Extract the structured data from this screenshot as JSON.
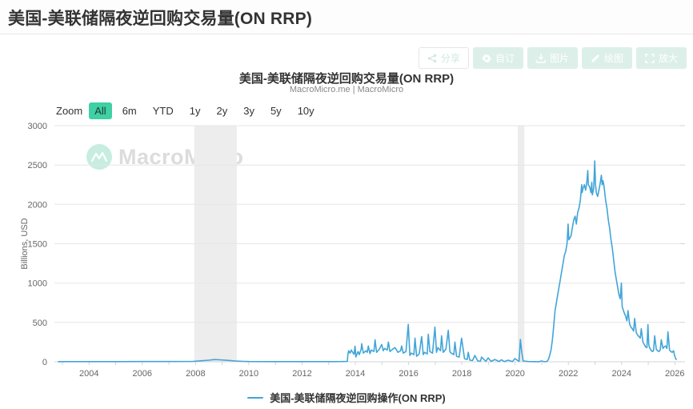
{
  "page": {
    "title": "美国-美联储隔夜逆回购交易量(ON RRP)"
  },
  "toolbar": {
    "buttons": [
      {
        "icon": "share-icon",
        "label": "分享",
        "style": "light"
      },
      {
        "icon": "gear-icon",
        "label": "自订",
        "style": "teal"
      },
      {
        "icon": "image-download-icon",
        "label": "图片",
        "style": "teal"
      },
      {
        "icon": "pencil-icon",
        "label": "绘图",
        "style": "teal"
      },
      {
        "icon": "expand-icon",
        "label": "放大",
        "style": "teal"
      }
    ]
  },
  "chart_header": {
    "title": "美国-美联储隔夜逆回购交易量(ON RRP)",
    "subtitle": "MacroMicro.me | MacroMicro"
  },
  "zoom_controls": {
    "label": "Zoom",
    "selected": "All",
    "options": [
      "All",
      "6m",
      "YTD",
      "1y",
      "2y",
      "3y",
      "5y",
      "10y"
    ]
  },
  "watermark": {
    "text": "MacroMicro"
  },
  "colors": {
    "line": "#41a5d8",
    "accent": "#3fd0a4",
    "band": "#ededed",
    "grid": "#e6e6e6",
    "axis": "#d4d4d8"
  },
  "legend": {
    "items": [
      {
        "label": "美国-美联储隔夜逆回购操作(ON RRP)",
        "color": "#41a5d8"
      }
    ]
  },
  "chart_data": {
    "type": "line",
    "title": "美国-美联储隔夜逆回购交易量(ON RRP)",
    "subtitle": "MacroMicro.me | MacroMicro",
    "xlabel": "",
    "ylabel": "Billions, USD",
    "ylim": [
      0,
      3000
    ],
    "yticks": [
      0,
      500,
      1000,
      1500,
      2000,
      2500,
      3000
    ],
    "xlim": [
      2002.7,
      2026.2
    ],
    "xticks": [
      2004,
      2006,
      2008,
      2010,
      2012,
      2014,
      2016,
      2018,
      2020,
      2022,
      2024,
      2026
    ],
    "grid": true,
    "legend_position": "bottom",
    "recession_bands": [
      [
        2007.95,
        2009.55
      ],
      [
        2020.1,
        2020.35
      ]
    ],
    "series": [
      {
        "name": "美国-美联储隔夜逆回购操作(ON RRP)",
        "color": "#41a5d8",
        "points": [
          [
            2002.85,
            2
          ],
          [
            2004,
            2
          ],
          [
            2005,
            2
          ],
          [
            2006,
            3
          ],
          [
            2007,
            3
          ],
          [
            2007.9,
            5
          ],
          [
            2008.2,
            12
          ],
          [
            2008.5,
            20
          ],
          [
            2008.7,
            28
          ],
          [
            2008.9,
            25
          ],
          [
            2009.2,
            18
          ],
          [
            2009.5,
            10
          ],
          [
            2009.8,
            5
          ],
          [
            2010,
            3
          ],
          [
            2011,
            2
          ],
          [
            2012,
            2
          ],
          [
            2013,
            2
          ],
          [
            2013.5,
            3
          ],
          [
            2013.7,
            5
          ],
          [
            2013.72,
            90
          ],
          [
            2013.75,
            140
          ],
          [
            2013.8,
            110
          ],
          [
            2013.85,
            150
          ],
          [
            2013.9,
            120
          ],
          [
            2013.95,
            95
          ],
          [
            2013.99,
            198
          ],
          [
            2014.02,
            60
          ],
          [
            2014.1,
            130
          ],
          [
            2014.15,
            90
          ],
          [
            2014.22,
            160
          ],
          [
            2014.24,
            230
          ],
          [
            2014.3,
            110
          ],
          [
            2014.4,
            140
          ],
          [
            2014.45,
            120
          ],
          [
            2014.49,
            200
          ],
          [
            2014.55,
            105
          ],
          [
            2014.6,
            150
          ],
          [
            2014.7,
            130
          ],
          [
            2014.74,
            280
          ],
          [
            2014.8,
            120
          ],
          [
            2014.9,
            160
          ],
          [
            2014.99,
            220
          ],
          [
            2015.05,
            140
          ],
          [
            2015.1,
            170
          ],
          [
            2015.2,
            150
          ],
          [
            2015.24,
            250
          ],
          [
            2015.3,
            130
          ],
          [
            2015.4,
            160
          ],
          [
            2015.49,
            180
          ],
          [
            2015.6,
            120
          ],
          [
            2015.7,
            140
          ],
          [
            2015.74,
            200
          ],
          [
            2015.8,
            110
          ],
          [
            2015.9,
            130
          ],
          [
            2015.99,
            475
          ],
          [
            2016.05,
            80
          ],
          [
            2016.1,
            110
          ],
          [
            2016.2,
            90
          ],
          [
            2016.24,
            300
          ],
          [
            2016.3,
            70
          ],
          [
            2016.4,
            100
          ],
          [
            2016.49,
            320
          ],
          [
            2016.55,
            90
          ],
          [
            2016.6,
            120
          ],
          [
            2016.7,
            100
          ],
          [
            2016.74,
            350
          ],
          [
            2016.8,
            130
          ],
          [
            2016.9,
            110
          ],
          [
            2016.99,
            440
          ],
          [
            2017.05,
            120
          ],
          [
            2017.1,
            180
          ],
          [
            2017.2,
            140
          ],
          [
            2017.24,
            330
          ],
          [
            2017.3,
            120
          ],
          [
            2017.4,
            160
          ],
          [
            2017.49,
            400
          ],
          [
            2017.55,
            130
          ],
          [
            2017.6,
            110
          ],
          [
            2017.7,
            90
          ],
          [
            2017.74,
            250
          ],
          [
            2017.8,
            70
          ],
          [
            2017.9,
            60
          ],
          [
            2017.99,
            300
          ],
          [
            2018.1,
            40
          ],
          [
            2018.2,
            30
          ],
          [
            2018.24,
            120
          ],
          [
            2018.3,
            20
          ],
          [
            2018.4,
            15
          ],
          [
            2018.49,
            80
          ],
          [
            2018.6,
            10
          ],
          [
            2018.7,
            8
          ],
          [
            2018.74,
            60
          ],
          [
            2018.9,
            5
          ],
          [
            2018.99,
            50
          ],
          [
            2019.1,
            5
          ],
          [
            2019.24,
            30
          ],
          [
            2019.4,
            3
          ],
          [
            2019.49,
            25
          ],
          [
            2019.6,
            2
          ],
          [
            2019.74,
            20
          ],
          [
            2019.9,
            2
          ],
          [
            2019.99,
            40
          ],
          [
            2020.15,
            5
          ],
          [
            2020.2,
            285
          ],
          [
            2020.25,
            120
          ],
          [
            2020.3,
            10
          ],
          [
            2020.5,
            3
          ],
          [
            2020.7,
            2
          ],
          [
            2020.9,
            1
          ],
          [
            2020.99,
            10
          ],
          [
            2021.1,
            1
          ],
          [
            2021.2,
            5
          ],
          [
            2021.25,
            30
          ],
          [
            2021.3,
            80
          ],
          [
            2021.35,
            150
          ],
          [
            2021.4,
            280
          ],
          [
            2021.45,
            450
          ],
          [
            2021.5,
            650
          ],
          [
            2021.55,
            750
          ],
          [
            2021.6,
            850
          ],
          [
            2021.65,
            950
          ],
          [
            2021.7,
            1050
          ],
          [
            2021.75,
            1150
          ],
          [
            2021.8,
            1250
          ],
          [
            2021.85,
            1350
          ],
          [
            2021.9,
            1400
          ],
          [
            2021.95,
            1500
          ],
          [
            2021.99,
            1750
          ],
          [
            2022.02,
            1550
          ],
          [
            2022.1,
            1600
          ],
          [
            2022.15,
            1700
          ],
          [
            2022.2,
            1800
          ],
          [
            2022.25,
            1850
          ],
          [
            2022.3,
            1750
          ],
          [
            2022.35,
            1900
          ],
          [
            2022.4,
            1950
          ],
          [
            2022.45,
            2050
          ],
          [
            2022.5,
            2250
          ],
          [
            2022.52,
            2150
          ],
          [
            2022.55,
            2200
          ],
          [
            2022.6,
            2250
          ],
          [
            2022.65,
            2180
          ],
          [
            2022.7,
            2300
          ],
          [
            2022.73,
            2430
          ],
          [
            2022.75,
            2250
          ],
          [
            2022.8,
            2220
          ],
          [
            2022.85,
            2150
          ],
          [
            2022.88,
            2280
          ],
          [
            2022.9,
            2120
          ],
          [
            2022.95,
            2200
          ],
          [
            2022.99,
            2553
          ],
          [
            2023.02,
            2250
          ],
          [
            2023.05,
            2150
          ],
          [
            2023.1,
            2100
          ],
          [
            2023.15,
            2180
          ],
          [
            2023.2,
            2280
          ],
          [
            2023.24,
            2370
          ],
          [
            2023.27,
            2250
          ],
          [
            2023.3,
            2300
          ],
          [
            2023.33,
            2250
          ],
          [
            2023.36,
            2170
          ],
          [
            2023.4,
            2050
          ],
          [
            2023.45,
            1950
          ],
          [
            2023.5,
            1800
          ],
          [
            2023.55,
            1700
          ],
          [
            2023.6,
            1550
          ],
          [
            2023.65,
            1450
          ],
          [
            2023.7,
            1300
          ],
          [
            2023.75,
            1150
          ],
          [
            2023.8,
            1050
          ],
          [
            2023.85,
            950
          ],
          [
            2023.9,
            850
          ],
          [
            2023.95,
            800
          ],
          [
            2023.99,
            1000
          ],
          [
            2024.02,
            700
          ],
          [
            2024.1,
            620
          ],
          [
            2024.15,
            580
          ],
          [
            2024.2,
            520
          ],
          [
            2024.24,
            650
          ],
          [
            2024.3,
            480
          ],
          [
            2024.35,
            440
          ],
          [
            2024.4,
            420
          ],
          [
            2024.45,
            390
          ],
          [
            2024.49,
            550
          ],
          [
            2024.55,
            370
          ],
          [
            2024.6,
            340
          ],
          [
            2024.65,
            320
          ],
          [
            2024.7,
            300
          ],
          [
            2024.74,
            420
          ],
          [
            2024.8,
            250
          ],
          [
            2024.85,
            220
          ],
          [
            2024.9,
            190
          ],
          [
            2024.95,
            180
          ],
          [
            2024.99,
            473
          ],
          [
            2025.02,
            220
          ],
          [
            2025.05,
            180
          ],
          [
            2025.1,
            150
          ],
          [
            2025.15,
            130
          ],
          [
            2025.2,
            140
          ],
          [
            2025.24,
            330
          ],
          [
            2025.3,
            160
          ],
          [
            2025.35,
            140
          ],
          [
            2025.4,
            130
          ],
          [
            2025.45,
            150
          ],
          [
            2025.49,
            280
          ],
          [
            2025.55,
            170
          ],
          [
            2025.6,
            190
          ],
          [
            2025.65,
            200
          ],
          [
            2025.7,
            170
          ],
          [
            2025.74,
            380
          ],
          [
            2025.8,
            150
          ],
          [
            2025.85,
            130
          ],
          [
            2025.9,
            120
          ],
          [
            2025.95,
            140
          ],
          [
            2025.99,
            80
          ],
          [
            2026.02,
            50
          ],
          [
            2026.05,
            30
          ]
        ]
      }
    ]
  }
}
